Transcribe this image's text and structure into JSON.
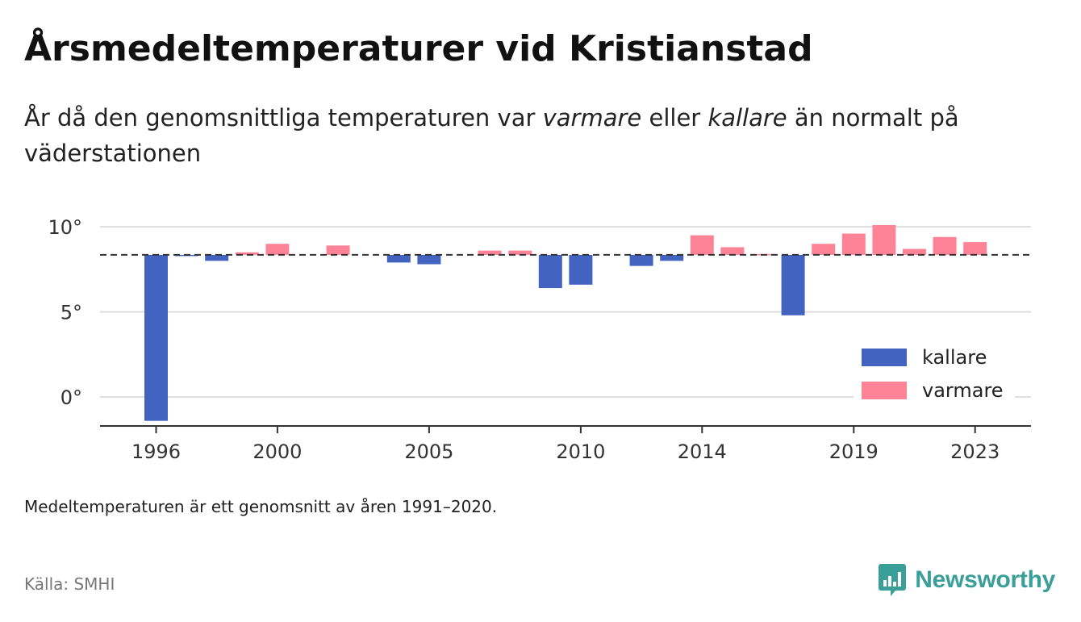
{
  "header": {
    "title": "Årsmedeltemperaturer vid Kristianstad",
    "subtitle_parts": [
      "År då den genomsnittliga temperaturen var ",
      "varmare",
      " eller ",
      "kallare",
      " än normalt på väderstationen"
    ]
  },
  "footer": {
    "note": "Medeltemperaturen är ett genomsnitt av åren 1991–2020.",
    "source": "Källa: SMHI",
    "brand": "Newsworthy"
  },
  "chart_data": {
    "type": "bar",
    "title": "Årsmedeltemperaturer vid Kristianstad",
    "xlabel": "",
    "ylabel": "",
    "x": [
      1996,
      1997,
      1998,
      1999,
      2000,
      2001,
      2002,
      2003,
      2004,
      2005,
      2006,
      2007,
      2008,
      2009,
      2010,
      2011,
      2012,
      2013,
      2014,
      2015,
      2016,
      2017,
      2018,
      2019,
      2020,
      2021,
      2022,
      2023
    ],
    "values": [
      -1.4,
      8.3,
      8.0,
      8.5,
      9.0,
      null,
      8.9,
      null,
      7.9,
      7.8,
      null,
      8.6,
      8.6,
      6.4,
      6.6,
      null,
      7.7,
      8.0,
      9.5,
      8.8,
      8.4,
      4.8,
      9.0,
      9.6,
      10.1,
      8.7,
      9.4,
      9.1
    ],
    "baseline": 8.35,
    "xticks": [
      1996,
      2000,
      2005,
      2010,
      2014,
      2019,
      2023
    ],
    "yticks": [
      0,
      5,
      10
    ],
    "ytick_labels": [
      "0°",
      "5°",
      "10°"
    ],
    "ylim": [
      -1.7,
      11.0
    ],
    "grid": true,
    "legend_position": "bottom-right",
    "series": [
      {
        "name": "kallare",
        "color": "#4263c0"
      },
      {
        "name": "varmare",
        "color": "#ff8396"
      }
    ]
  }
}
